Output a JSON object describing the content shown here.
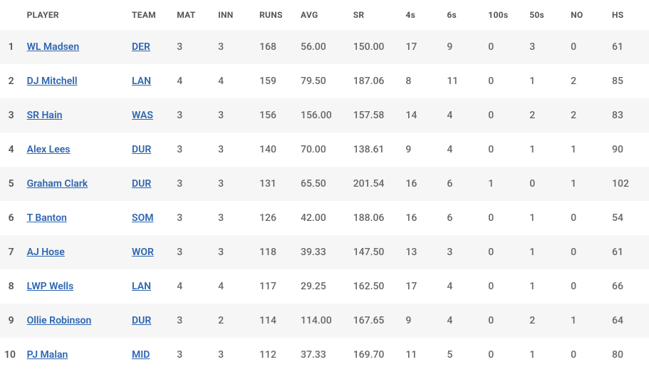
{
  "columns": [
    "",
    "PLAYER",
    "TEAM",
    "MAT",
    "INN",
    "RUNS",
    "AVG",
    "SR",
    "4s",
    "6s",
    "100s",
    "50s",
    "NO",
    "HS"
  ],
  "link_color": "#2e66b1",
  "text_color": "#666",
  "header_color": "#555",
  "row_alt_bg": "#f6f6f6",
  "row_bg": "#ffffff",
  "header_fontsize": 12,
  "cell_fontsize": 14,
  "col_classes": [
    "rank-col",
    "player-col",
    "team-col",
    "num-col",
    "num-col",
    "num-col",
    "num-col-w",
    "num-col-w",
    "num-col",
    "num-col",
    "num-col",
    "num-col",
    "num-col",
    "num-col"
  ],
  "rows": [
    {
      "rank": "1",
      "player": "WL Madsen",
      "team": "DER",
      "mat": "3",
      "inn": "3",
      "runs": "168",
      "avg": "56.00",
      "sr": "150.00",
      "fours": "17",
      "sixes": "9",
      "hundreds": "0",
      "fifties": "3",
      "no": "0",
      "hs": "61"
    },
    {
      "rank": "2",
      "player": "DJ Mitchell",
      "team": "LAN",
      "mat": "4",
      "inn": "4",
      "runs": "159",
      "avg": "79.50",
      "sr": "187.06",
      "fours": "8",
      "sixes": "11",
      "hundreds": "0",
      "fifties": "1",
      "no": "2",
      "hs": "85"
    },
    {
      "rank": "3",
      "player": "SR Hain",
      "team": "WAS",
      "mat": "3",
      "inn": "3",
      "runs": "156",
      "avg": "156.00",
      "sr": "157.58",
      "fours": "14",
      "sixes": "4",
      "hundreds": "0",
      "fifties": "2",
      "no": "2",
      "hs": "83"
    },
    {
      "rank": "4",
      "player": "Alex Lees",
      "team": "DUR",
      "mat": "3",
      "inn": "3",
      "runs": "140",
      "avg": "70.00",
      "sr": "138.61",
      "fours": "9",
      "sixes": "4",
      "hundreds": "0",
      "fifties": "1",
      "no": "1",
      "hs": "90"
    },
    {
      "rank": "5",
      "player": "Graham Clark",
      "team": "DUR",
      "mat": "3",
      "inn": "3",
      "runs": "131",
      "avg": "65.50",
      "sr": "201.54",
      "fours": "16",
      "sixes": "6",
      "hundreds": "1",
      "fifties": "0",
      "no": "1",
      "hs": "102"
    },
    {
      "rank": "6",
      "player": "T Banton",
      "team": "SOM",
      "mat": "3",
      "inn": "3",
      "runs": "126",
      "avg": "42.00",
      "sr": "188.06",
      "fours": "16",
      "sixes": "6",
      "hundreds": "0",
      "fifties": "1",
      "no": "0",
      "hs": "54"
    },
    {
      "rank": "7",
      "player": "AJ Hose",
      "team": "WOR",
      "mat": "3",
      "inn": "3",
      "runs": "118",
      "avg": "39.33",
      "sr": "147.50",
      "fours": "13",
      "sixes": "3",
      "hundreds": "0",
      "fifties": "1",
      "no": "0",
      "hs": "61"
    },
    {
      "rank": "8",
      "player": "LWP Wells",
      "team": "LAN",
      "mat": "4",
      "inn": "4",
      "runs": "117",
      "avg": "29.25",
      "sr": "162.50",
      "fours": "17",
      "sixes": "4",
      "hundreds": "0",
      "fifties": "1",
      "no": "0",
      "hs": "66"
    },
    {
      "rank": "9",
      "player": "Ollie Robinson",
      "team": "DUR",
      "mat": "3",
      "inn": "2",
      "runs": "114",
      "avg": "114.00",
      "sr": "167.65",
      "fours": "9",
      "sixes": "4",
      "hundreds": "0",
      "fifties": "2",
      "no": "1",
      "hs": "64"
    },
    {
      "rank": "10",
      "player": "PJ Malan",
      "team": "MID",
      "mat": "3",
      "inn": "3",
      "runs": "112",
      "avg": "37.33",
      "sr": "169.70",
      "fours": "11",
      "sixes": "5",
      "hundreds": "0",
      "fifties": "1",
      "no": "0",
      "hs": "80"
    }
  ]
}
